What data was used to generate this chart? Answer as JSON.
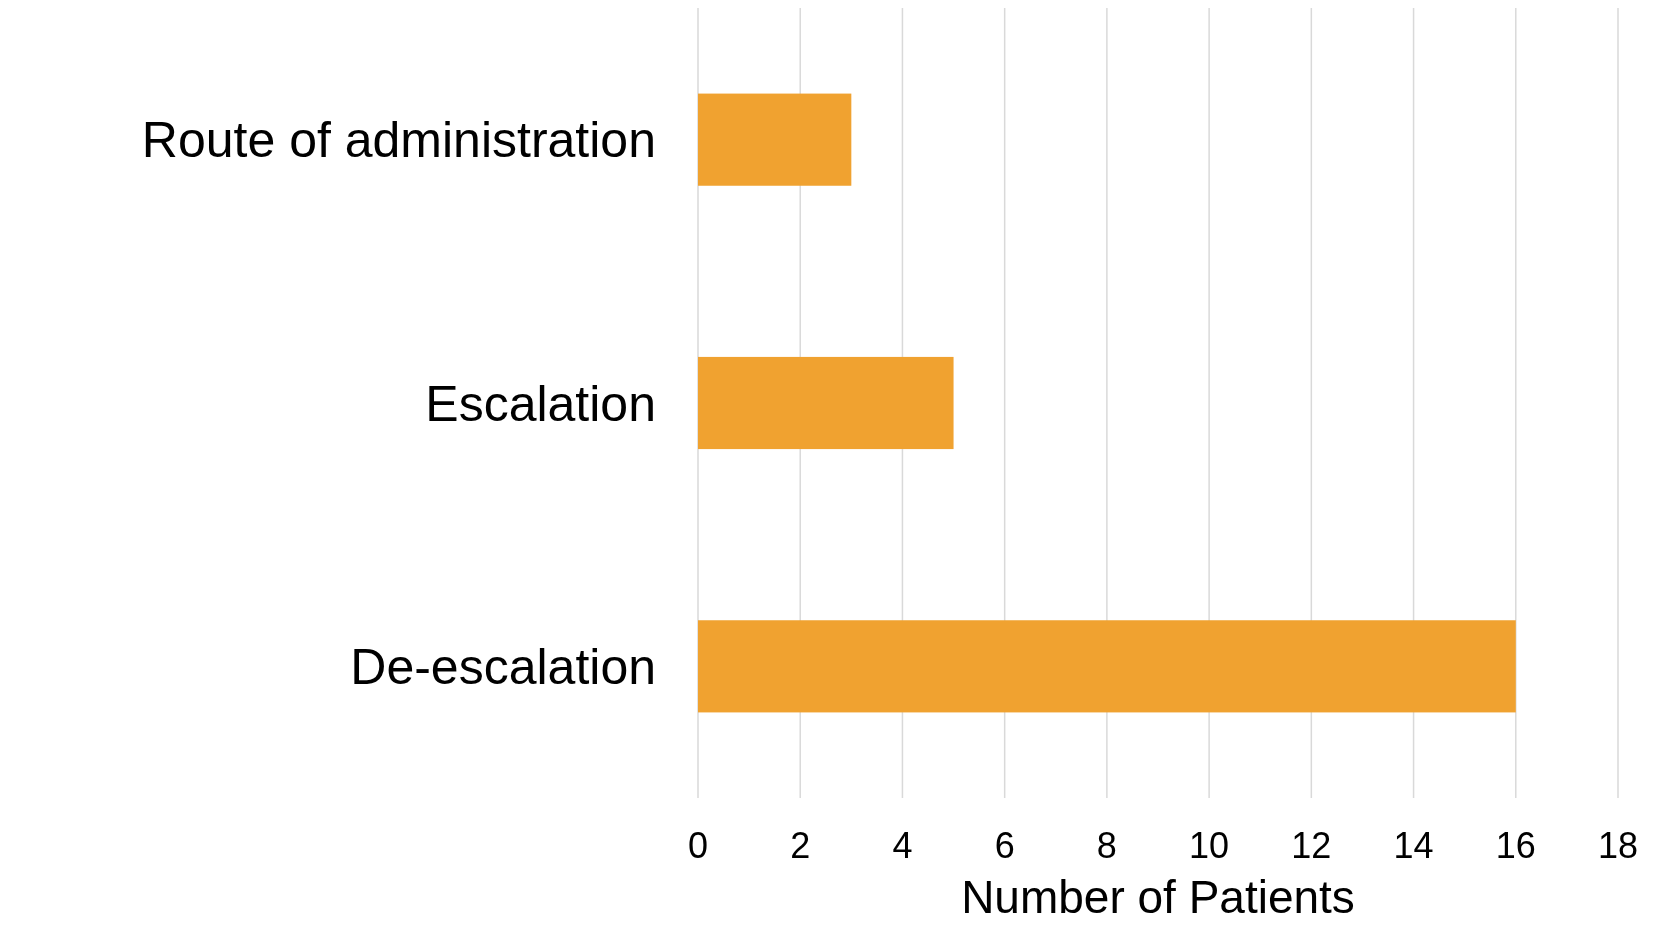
{
  "chart_data": {
    "type": "bar",
    "orientation": "horizontal",
    "xlabel": "Number of Patients",
    "categories": [
      "Route of administration",
      "Escalation",
      "De-escalation"
    ],
    "values": [
      3,
      5,
      16
    ],
    "color": "#f0a230",
    "xlim": [
      0,
      18
    ],
    "xticks": [
      0,
      2,
      4,
      6,
      8,
      10,
      12,
      14,
      16,
      18
    ],
    "grid": "x"
  }
}
